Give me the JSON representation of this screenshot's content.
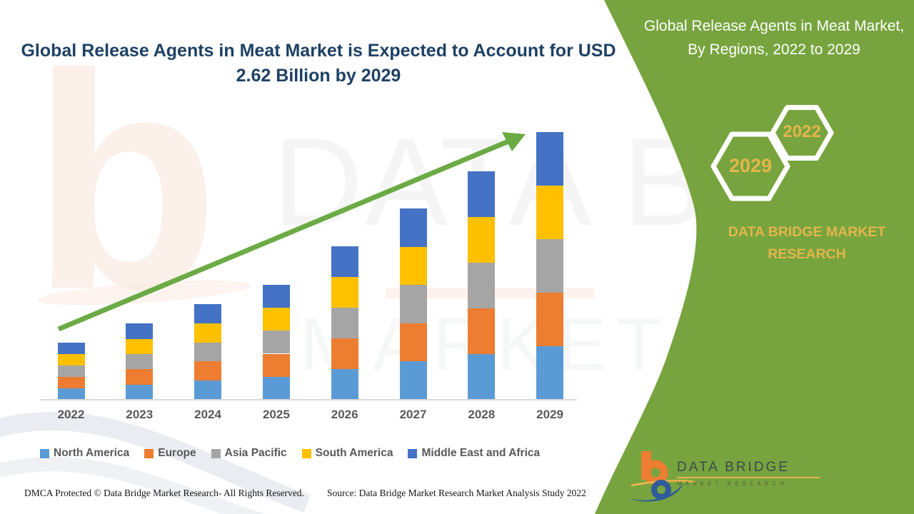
{
  "header": {
    "main_title": "Global Release Agents in Meat Market is Expected to Account for USD 2.62 Billion by 2029",
    "panel_title": "Global Release Agents in Meat Market, By Regions, 2022 to 2029"
  },
  "side_panel": {
    "hexagons": [
      {
        "label": "2029"
      },
      {
        "label": "2022"
      }
    ],
    "brand_text": "DATA BRIDGE MARKET RESEARCH"
  },
  "chart_data": {
    "type": "bar",
    "stacked": true,
    "title": "Global Release Agents in Meat Market is Expected to Account for USD 2.62 Billion by 2029",
    "xlabel": "",
    "ylabel": "",
    "unit": "USD Billion",
    "categories": [
      "2022",
      "2023",
      "2024",
      "2025",
      "2026",
      "2027",
      "2028",
      "2029"
    ],
    "totals": [
      0.56,
      0.75,
      0.94,
      1.12,
      1.5,
      1.87,
      2.24,
      2.62
    ],
    "series": [
      {
        "name": "North America",
        "color": "#5B9BD5",
        "values": [
          0.112,
          0.149,
          0.187,
          0.225,
          0.3,
          0.374,
          0.447,
          0.524
        ]
      },
      {
        "name": "Europe",
        "color": "#ED7D31",
        "values": [
          0.112,
          0.149,
          0.187,
          0.225,
          0.3,
          0.374,
          0.447,
          0.524
        ]
      },
      {
        "name": "Asia Pacific",
        "color": "#A5A5A5",
        "values": [
          0.112,
          0.149,
          0.187,
          0.225,
          0.3,
          0.374,
          0.447,
          0.524
        ]
      },
      {
        "name": "South America",
        "color": "#FFC000",
        "values": [
          0.112,
          0.149,
          0.187,
          0.225,
          0.3,
          0.374,
          0.447,
          0.524
        ]
      },
      {
        "name": "Middle East and Africa",
        "color": "#4472C4",
        "values": [
          0.112,
          0.149,
          0.187,
          0.225,
          0.3,
          0.374,
          0.447,
          0.524
        ]
      }
    ],
    "legend_position": "bottom",
    "grid": false,
    "annotations": [
      "upward trend arrow"
    ]
  },
  "watermarks": {
    "big_letter": "b",
    "line1": "DATA BRIDGE",
    "line2": "MARKET RESEARCH"
  },
  "footer": {
    "dmca": "DMCA Protected © Data Bridge Market Research- All Rights Reserved.",
    "source": "Source: Data Bridge Market Research Market Analysis Study 2022",
    "logo": {
      "title": "DATA BRIDGE",
      "subtitle": "MARKET RESEARCH"
    }
  },
  "colors": {
    "panel_green": "#77A43E",
    "gold": "#E4B54B",
    "title_navy": "#1E4164",
    "arrow_green": "#6BAB45",
    "axis_label": "#595959",
    "axis_line": "#D9D9D9"
  }
}
